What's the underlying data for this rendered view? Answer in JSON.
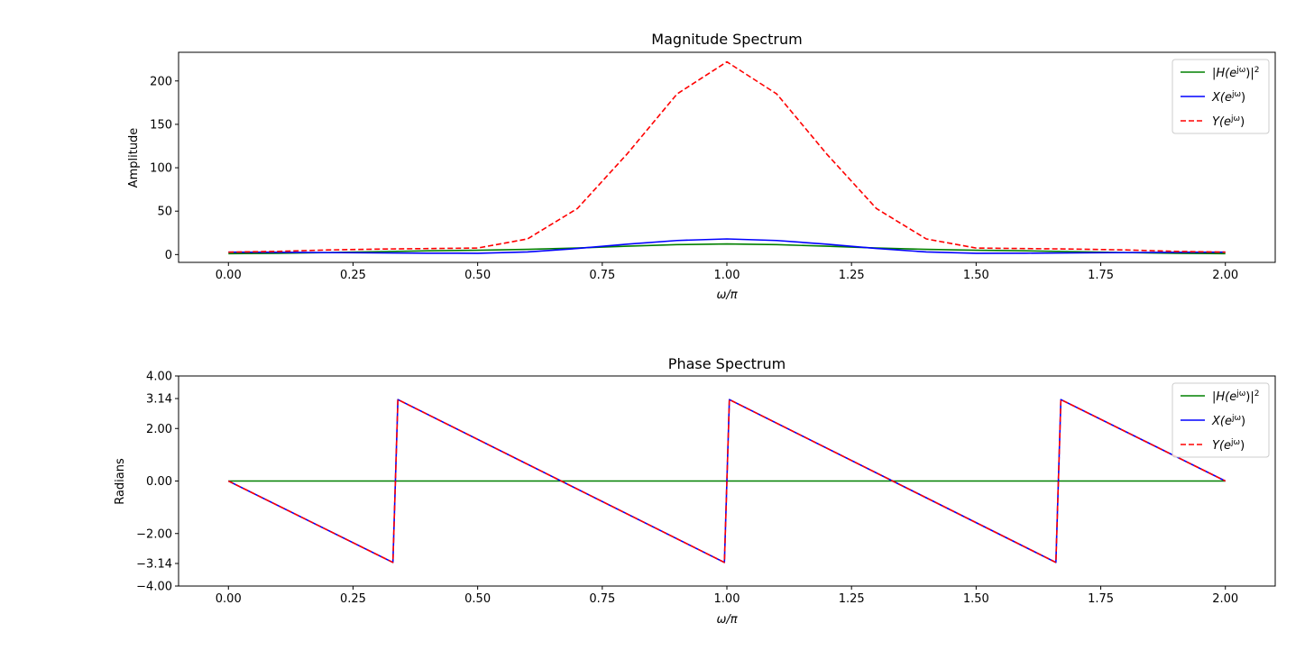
{
  "chart_data": [
    {
      "type": "line",
      "title": "Magnitude Spectrum",
      "xlabel": "ω/π",
      "ylabel": "Amplitude",
      "xlim": [
        -0.1,
        2.1
      ],
      "ylim": [
        -9,
        233
      ],
      "xticks": [
        0,
        0.25,
        0.5,
        0.75,
        1.0,
        1.25,
        1.5,
        1.75,
        2.0
      ],
      "xtick_labels": [
        "0.00",
        "0.25",
        "0.50",
        "0.75",
        "1.00",
        "1.25",
        "1.50",
        "1.75",
        "2.00"
      ],
      "yticks": [
        0,
        50,
        100,
        150,
        200
      ],
      "ytick_labels": [
        "0",
        "50",
        "100",
        "150",
        "200"
      ],
      "grid": false,
      "legend_position": "top-right",
      "x": [
        0,
        0.1,
        0.2,
        0.3,
        0.4,
        0.5,
        0.6,
        0.7,
        0.8,
        0.9,
        1.0,
        1.1,
        1.2,
        1.3,
        1.4,
        1.5,
        1.6,
        1.7,
        1.8,
        1.9,
        2.0
      ],
      "series": [
        {
          "name": "|H(e^{jω})|²",
          "legend_main": "|H(e",
          "legend_sup": "jω",
          "legend_tail": ")|",
          "legend_sup2": "2",
          "color": "#008000",
          "dash": "solid",
          "values": [
            1.0,
            1.4,
            2.3,
            3.3,
            4.3,
            5.0,
            6.0,
            7.6,
            9.6,
            11.4,
            12.2,
            11.4,
            9.6,
            7.6,
            6.0,
            5.0,
            4.3,
            3.3,
            2.3,
            1.4,
            1.0
          ]
        },
        {
          "name": "X(e^{jω})",
          "legend_main": "X(e",
          "legend_sup": "jω",
          "legend_tail": ")",
          "legend_sup2": "",
          "color": "#0000ff",
          "dash": "solid",
          "values": [
            2.8,
            2.6,
            2.3,
            1.9,
            1.6,
            1.5,
            3.0,
            7.0,
            12.0,
            16.2,
            18.0,
            16.2,
            12.0,
            7.0,
            3.0,
            1.5,
            1.6,
            1.9,
            2.3,
            2.6,
            2.8
          ]
        },
        {
          "name": "Y(e^{jω})",
          "legend_main": "Y(e",
          "legend_sup": "jω",
          "legend_tail": ")",
          "legend_sup2": "",
          "color": "#ff0000",
          "dash": "dashed",
          "values": [
            2.8,
            3.7,
            5.3,
            6.3,
            6.9,
            7.5,
            18.0,
            53.0,
            116.0,
            185.0,
            222.0,
            185.0,
            116.0,
            53.0,
            18.0,
            7.5,
            6.9,
            6.3,
            5.3,
            3.7,
            2.8
          ]
        }
      ]
    },
    {
      "type": "line",
      "title": "Phase Spectrum",
      "xlabel": "ω/π",
      "ylabel": "Radians",
      "xlim": [
        -0.1,
        2.1
      ],
      "ylim": [
        -4.0,
        4.0
      ],
      "xticks": [
        0,
        0.25,
        0.5,
        0.75,
        1.0,
        1.25,
        1.5,
        1.75,
        2.0
      ],
      "xtick_labels": [
        "0.00",
        "0.25",
        "0.50",
        "0.75",
        "1.00",
        "1.25",
        "1.50",
        "1.75",
        "2.00"
      ],
      "yticks": [
        -4.0,
        -3.14,
        -2.0,
        0.0,
        2.0,
        3.14,
        4.0
      ],
      "ytick_labels": [
        "−4.00",
        "−3.14",
        "−2.00",
        "0.00",
        "2.00",
        "3.14",
        "4.00"
      ],
      "grid": false,
      "legend_position": "top-right",
      "series": [
        {
          "name": "|H(e^{jω})|²",
          "legend_main": "|H(e",
          "legend_sup": "jω",
          "legend_tail": ")|",
          "legend_sup2": "2",
          "color": "#008000",
          "dash": "solid",
          "x": [
            0,
            2.0
          ],
          "values": [
            0,
            0
          ]
        },
        {
          "name": "X(e^{jω})",
          "legend_main": "X(e",
          "legend_sup": "jω",
          "legend_tail": ")",
          "legend_sup2": "",
          "color": "#0000ff",
          "dash": "solid",
          "x": [
            0,
            0.33,
            0.34,
            0.995,
            1.005,
            1.66,
            1.67,
            2.0
          ],
          "values": [
            0,
            -3.1,
            3.1,
            -3.1,
            3.1,
            -3.1,
            3.1,
            0
          ]
        },
        {
          "name": "Y(e^{jω})",
          "legend_main": "Y(e",
          "legend_sup": "jω",
          "legend_tail": ")",
          "legend_sup2": "",
          "color": "#ff0000",
          "dash": "dashed",
          "x": [
            0,
            0.33,
            0.34,
            0.995,
            1.005,
            1.66,
            1.67,
            2.0
          ],
          "values": [
            0,
            -3.1,
            3.1,
            -3.1,
            3.1,
            -3.1,
            3.1,
            0
          ]
        }
      ]
    }
  ]
}
